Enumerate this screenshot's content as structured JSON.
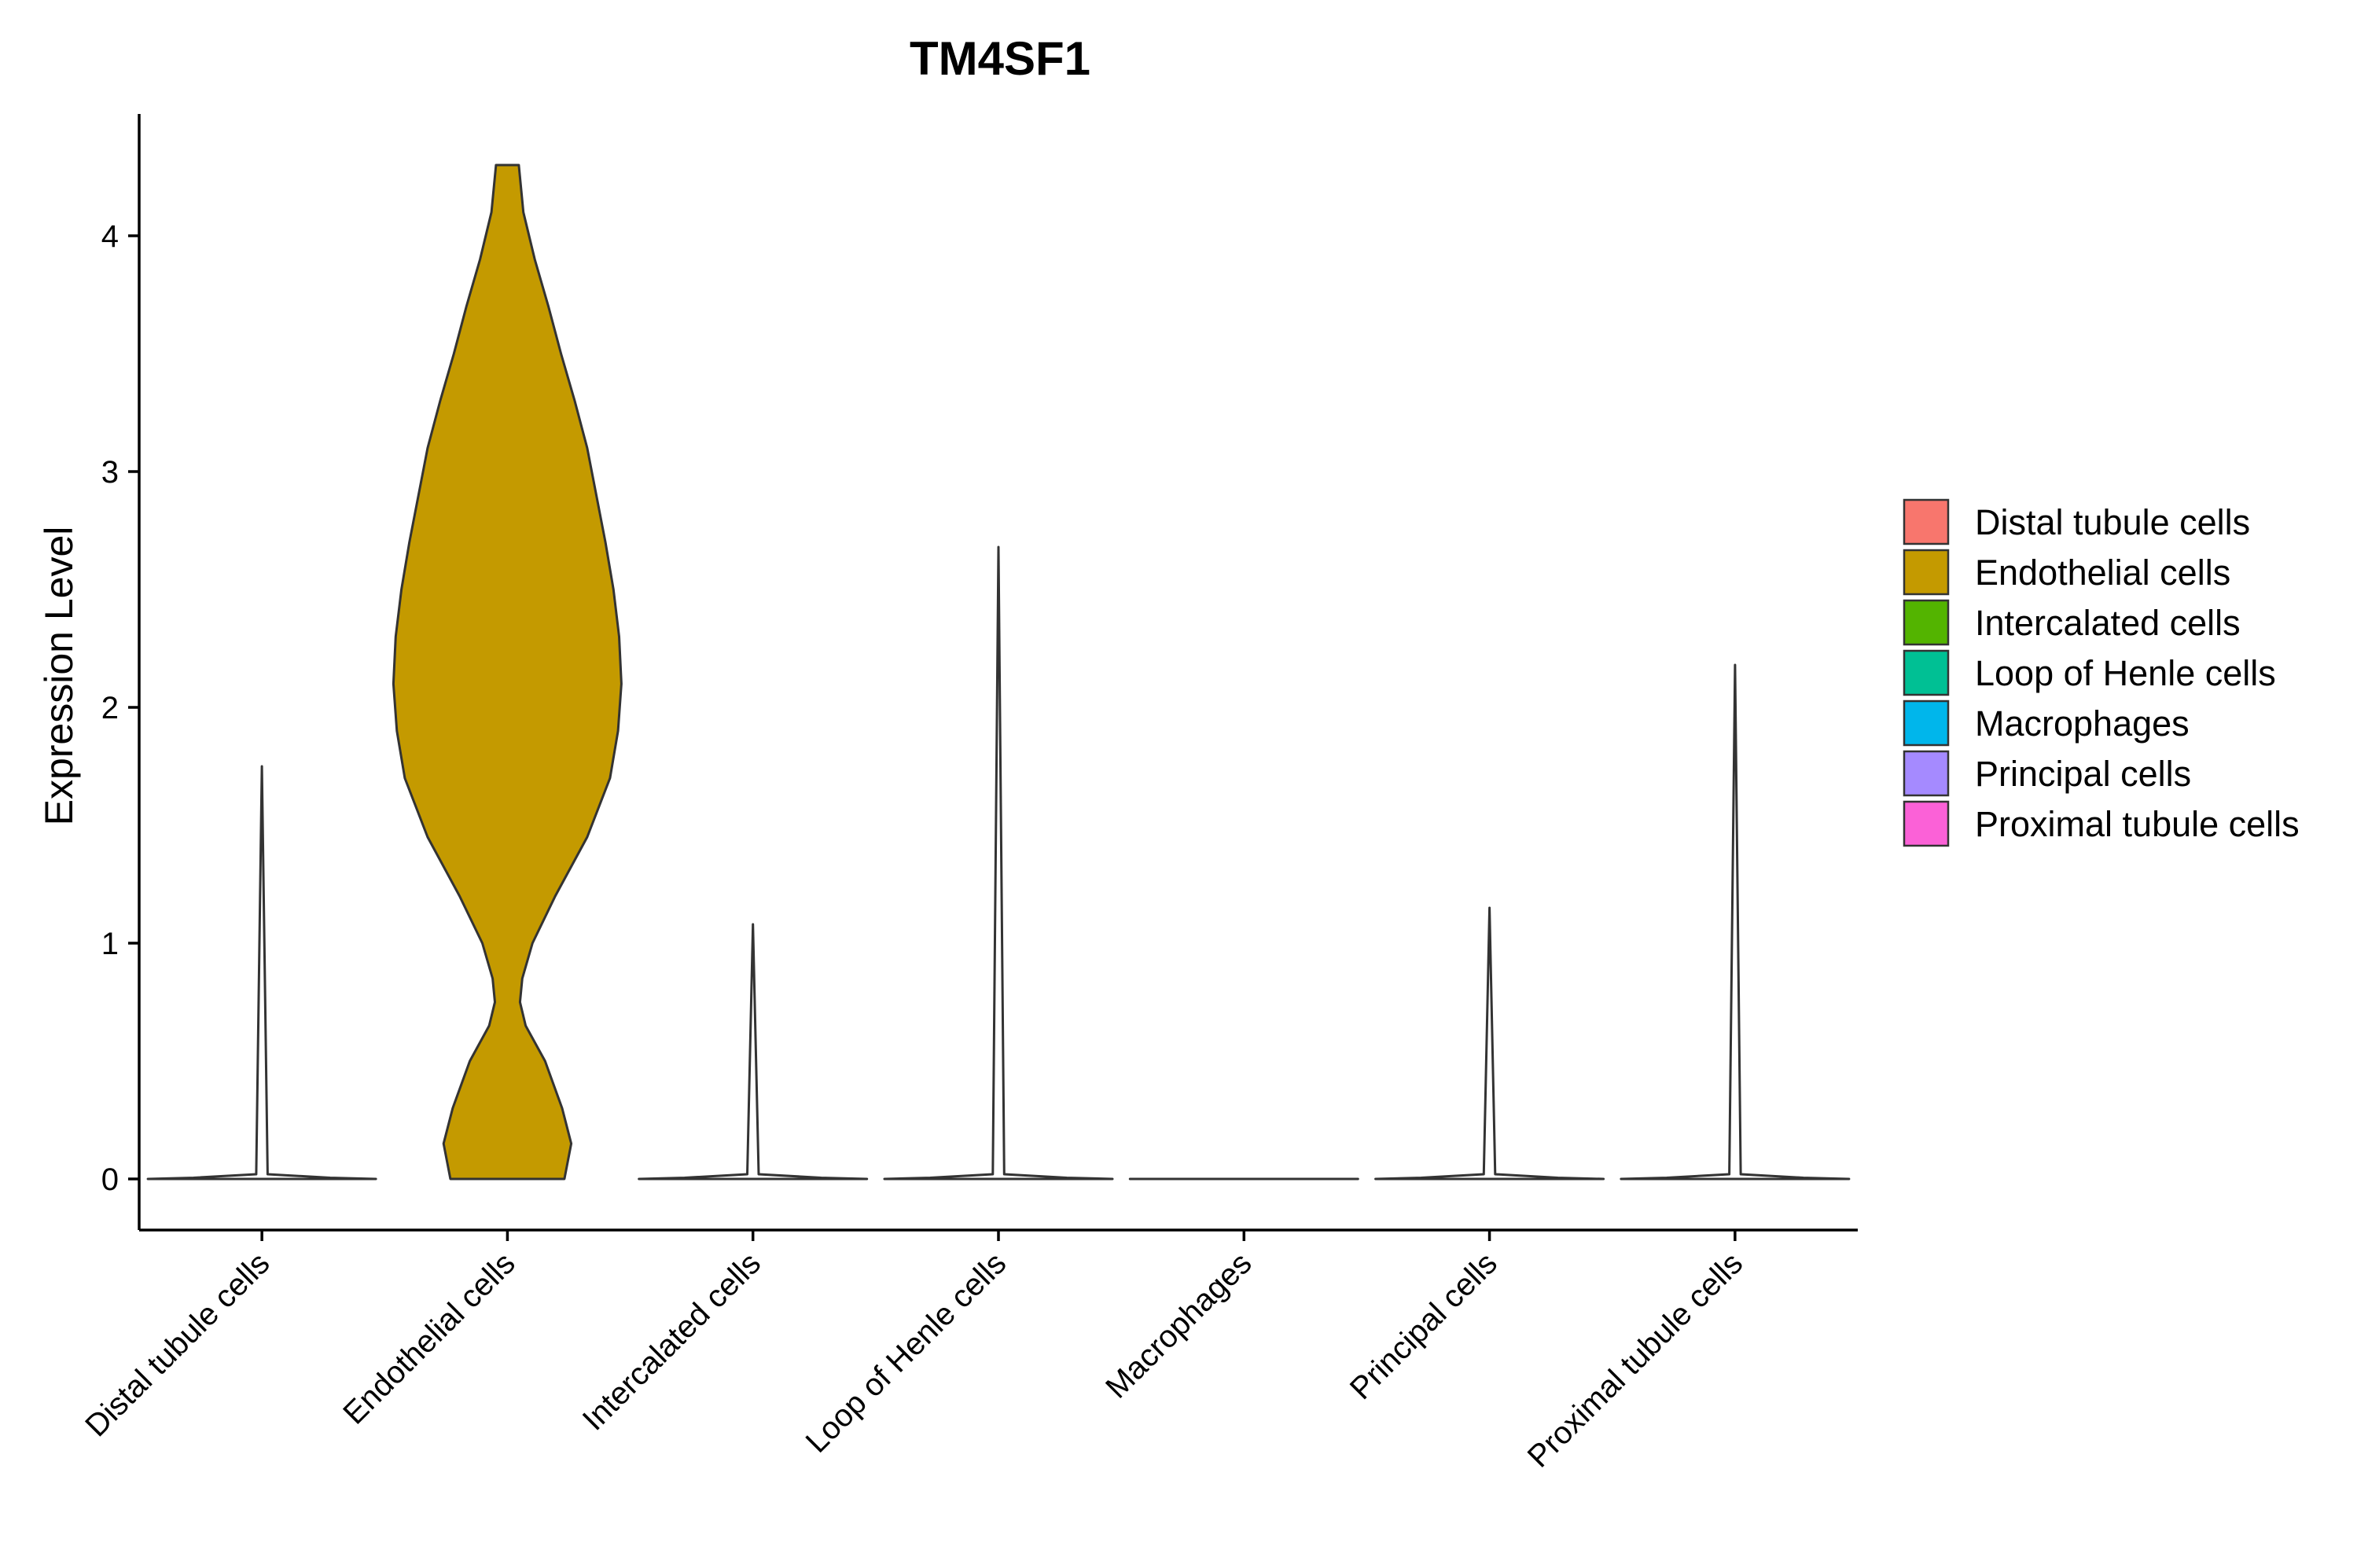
{
  "chart_data": {
    "type": "violin",
    "title": "TM4SF1",
    "xlabel": "",
    "ylabel": "Expression Level",
    "ylim": [
      -0.21,
      4.5
    ],
    "yticks": [
      0,
      1,
      2,
      3,
      4
    ],
    "ytick_labels": [
      "0",
      "1",
      "2",
      "3",
      "4"
    ],
    "grid": false,
    "legend_position": "right",
    "categories": [
      "Distal tubule cells",
      "Endothelial cells",
      "Intercalated cells",
      "Loop of Henle cells",
      "Macrophages",
      "Principal cells",
      "Proximal tubule cells"
    ],
    "colors": [
      "#F8766D",
      "#C49A00",
      "#53B400",
      "#00C094",
      "#00B6EB",
      "#A58AFF",
      "#FB61D7"
    ],
    "max_values": [
      1.75,
      4.3,
      1.08,
      2.68,
      0.0,
      1.15,
      2.18
    ],
    "min_values": [
      0,
      0,
      0,
      0,
      0,
      0,
      0
    ],
    "density_profiles": [
      [
        [
          0.0,
          1.0
        ],
        [
          0.005,
          0.6
        ],
        [
          0.02,
          0.05
        ],
        [
          1.75,
          0.0
        ]
      ],
      [
        [
          0.0,
          0.5
        ],
        [
          0.15,
          0.56
        ],
        [
          0.3,
          0.48
        ],
        [
          0.5,
          0.33
        ],
        [
          0.65,
          0.16
        ],
        [
          0.75,
          0.11
        ],
        [
          0.85,
          0.13
        ],
        [
          1.0,
          0.22
        ],
        [
          1.2,
          0.42
        ],
        [
          1.45,
          0.7
        ],
        [
          1.7,
          0.9
        ],
        [
          1.9,
          0.97
        ],
        [
          2.1,
          1.0
        ],
        [
          2.3,
          0.98
        ],
        [
          2.5,
          0.93
        ],
        [
          2.7,
          0.86
        ],
        [
          2.9,
          0.78
        ],
        [
          3.1,
          0.7
        ],
        [
          3.3,
          0.59
        ],
        [
          3.5,
          0.47
        ],
        [
          3.7,
          0.36
        ],
        [
          3.9,
          0.24
        ],
        [
          4.1,
          0.14
        ],
        [
          4.3,
          0.1
        ]
      ],
      [
        [
          0.0,
          1.0
        ],
        [
          0.005,
          0.6
        ],
        [
          0.02,
          0.05
        ],
        [
          1.08,
          0.0
        ]
      ],
      [
        [
          0.0,
          1.0
        ],
        [
          0.005,
          0.6
        ],
        [
          0.02,
          0.05
        ],
        [
          2.68,
          0.0
        ]
      ],
      [
        [
          0.0,
          1.0
        ]
      ],
      [
        [
          0.0,
          1.0
        ],
        [
          0.005,
          0.6
        ],
        [
          0.02,
          0.05
        ],
        [
          1.15,
          0.0
        ]
      ],
      [
        [
          0.0,
          1.0
        ],
        [
          0.005,
          0.6
        ],
        [
          0.02,
          0.05
        ],
        [
          2.18,
          0.0
        ]
      ]
    ]
  }
}
